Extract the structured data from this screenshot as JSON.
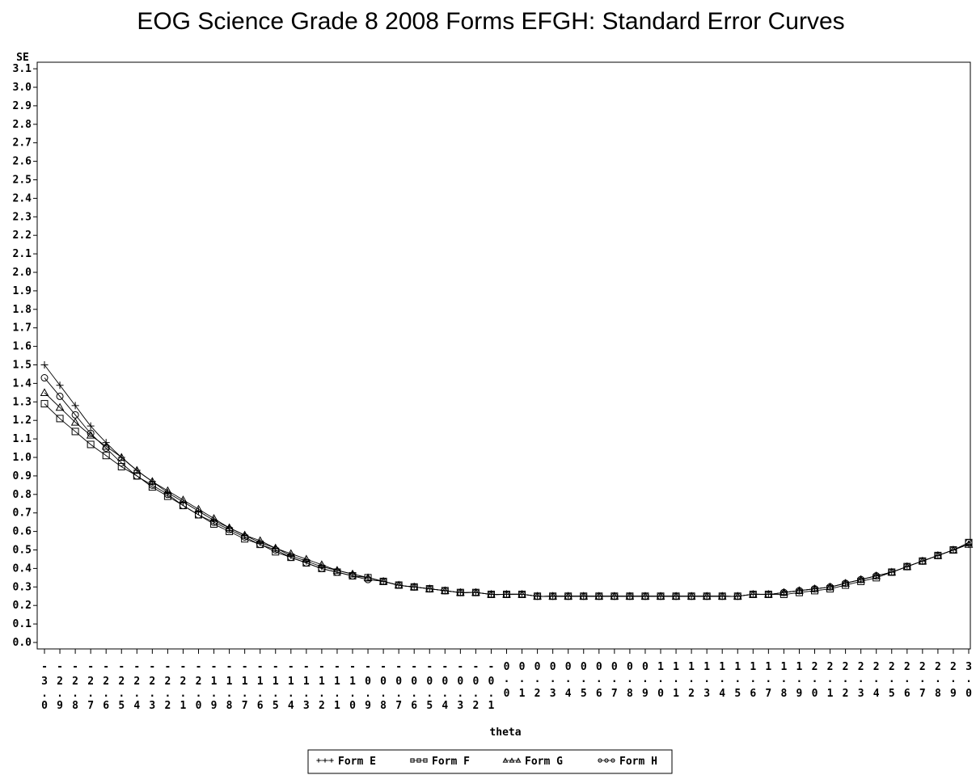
{
  "chart_data": {
    "type": "line",
    "title": "EOG Science Grade 8 2008 Forms EFGH: Standard Error Curves",
    "xlabel": "theta",
    "ylabel": "SE",
    "ylim": [
      0.0,
      3.1
    ],
    "y_ticks": [
      "0.0",
      "0.1",
      "0.2",
      "0.3",
      "0.4",
      "0.5",
      "0.6",
      "0.7",
      "0.8",
      "0.9",
      "1.0",
      "1.1",
      "1.2",
      "1.3",
      "1.4",
      "1.5",
      "1.6",
      "1.7",
      "1.8",
      "1.9",
      "2.0",
      "2.1",
      "2.2",
      "2.3",
      "2.4",
      "2.5",
      "2.6",
      "2.7",
      "2.8",
      "2.9",
      "3.0",
      "3.1"
    ],
    "x": [
      "-3.0",
      "-2.9",
      "-2.8",
      "-2.7",
      "-2.6",
      "-2.5",
      "-2.4",
      "-2.3",
      "-2.2",
      "-2.1",
      "-2.0",
      "-1.9",
      "-1.8",
      "-1.7",
      "-1.6",
      "-1.5",
      "-1.4",
      "-1.3",
      "-1.2",
      "-1.1",
      "-1.0",
      "-0.9",
      "-0.8",
      "-0.7",
      "-0.6",
      "-0.5",
      "-0.4",
      "-0.3",
      "-0.2",
      "-0.1",
      "0.0",
      "0.1",
      "0.2",
      "0.3",
      "0.4",
      "0.5",
      "0.6",
      "0.7",
      "0.8",
      "0.9",
      "1.0",
      "1.1",
      "1.2",
      "1.3",
      "1.4",
      "1.5",
      "1.6",
      "1.7",
      "1.8",
      "1.9",
      "2.0",
      "2.1",
      "2.2",
      "2.3",
      "2.4",
      "2.5",
      "2.6",
      "2.7",
      "2.8",
      "2.9",
      "3.0"
    ],
    "grid": false,
    "legend_position": "bottom",
    "series": [
      {
        "name": "Form E",
        "marker": "plus",
        "values": [
          1.5,
          1.39,
          1.28,
          1.17,
          1.08,
          1.0,
          0.93,
          0.87,
          0.81,
          0.76,
          0.71,
          0.66,
          0.62,
          0.58,
          0.54,
          0.51,
          0.47,
          0.44,
          0.41,
          0.39,
          0.37,
          0.35,
          0.33,
          0.31,
          0.3,
          0.29,
          0.28,
          0.27,
          0.27,
          0.26,
          0.26,
          0.26,
          0.25,
          0.25,
          0.25,
          0.25,
          0.25,
          0.25,
          0.25,
          0.25,
          0.25,
          0.25,
          0.25,
          0.25,
          0.25,
          0.25,
          0.26,
          0.26,
          0.27,
          0.28,
          0.29,
          0.3,
          0.32,
          0.34,
          0.36,
          0.38,
          0.41,
          0.44,
          0.47,
          0.5,
          0.53
        ]
      },
      {
        "name": "Form F",
        "marker": "square",
        "values": [
          1.29,
          1.21,
          1.14,
          1.07,
          1.01,
          0.95,
          0.9,
          0.84,
          0.79,
          0.74,
          0.69,
          0.64,
          0.6,
          0.56,
          0.53,
          0.49,
          0.46,
          0.43,
          0.4,
          0.38,
          0.36,
          0.35,
          0.33,
          0.31,
          0.3,
          0.29,
          0.28,
          0.27,
          0.27,
          0.26,
          0.26,
          0.26,
          0.25,
          0.25,
          0.25,
          0.25,
          0.25,
          0.25,
          0.25,
          0.25,
          0.25,
          0.25,
          0.25,
          0.25,
          0.25,
          0.25,
          0.26,
          0.26,
          0.26,
          0.27,
          0.28,
          0.29,
          0.31,
          0.33,
          0.35,
          0.38,
          0.41,
          0.44,
          0.47,
          0.5,
          0.54
        ]
      },
      {
        "name": "Form G",
        "marker": "triangle",
        "values": [
          1.35,
          1.27,
          1.19,
          1.12,
          1.06,
          1.0,
          0.93,
          0.87,
          0.82,
          0.77,
          0.72,
          0.67,
          0.62,
          0.58,
          0.55,
          0.51,
          0.48,
          0.45,
          0.42,
          0.39,
          0.37,
          0.35,
          0.33,
          0.31,
          0.3,
          0.29,
          0.28,
          0.27,
          0.27,
          0.26,
          0.26,
          0.26,
          0.25,
          0.25,
          0.25,
          0.25,
          0.25,
          0.25,
          0.25,
          0.25,
          0.25,
          0.25,
          0.25,
          0.25,
          0.25,
          0.25,
          0.26,
          0.26,
          0.27,
          0.28,
          0.29,
          0.3,
          0.32,
          0.34,
          0.36,
          0.38,
          0.41,
          0.44,
          0.47,
          0.5,
          0.53
        ]
      },
      {
        "name": "Form H",
        "marker": "circle",
        "values": [
          1.43,
          1.33,
          1.23,
          1.13,
          1.05,
          0.97,
          0.9,
          0.85,
          0.8,
          0.74,
          0.69,
          0.65,
          0.61,
          0.57,
          0.53,
          0.5,
          0.46,
          0.43,
          0.4,
          0.38,
          0.36,
          0.34,
          0.33,
          0.31,
          0.3,
          0.29,
          0.28,
          0.27,
          0.27,
          0.26,
          0.26,
          0.26,
          0.25,
          0.25,
          0.25,
          0.25,
          0.25,
          0.25,
          0.25,
          0.25,
          0.25,
          0.25,
          0.25,
          0.25,
          0.25,
          0.25,
          0.26,
          0.26,
          0.27,
          0.28,
          0.29,
          0.3,
          0.32,
          0.34,
          0.36,
          0.38,
          0.41,
          0.44,
          0.47,
          0.5,
          0.54
        ]
      }
    ]
  }
}
